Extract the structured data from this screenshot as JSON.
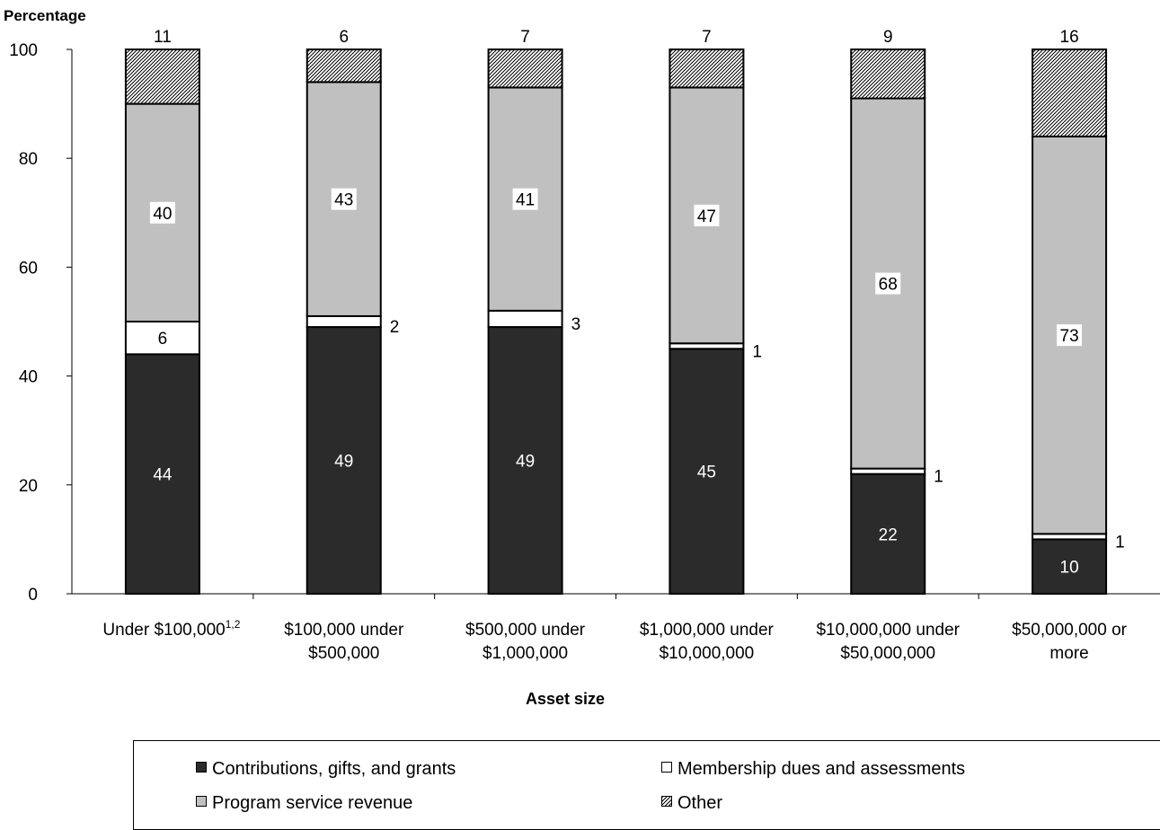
{
  "chart_data": {
    "type": "bar",
    "stacked": true,
    "ylabel": "Percentage",
    "xlabel": "Asset size",
    "ylim": [
      0,
      100
    ],
    "yticks": [
      0,
      20,
      40,
      60,
      80,
      100
    ],
    "categories": [
      [
        "Under $100,000",
        "1,2"
      ],
      [
        "$100,000 under",
        "$500,000"
      ],
      [
        "$500,000 under",
        "$1,000,000"
      ],
      [
        "$1,000,000 under",
        "$10,000,000"
      ],
      [
        "$10,000,000 under",
        "$50,000,000"
      ],
      [
        "$50,000,000 or",
        "more"
      ]
    ],
    "series": [
      {
        "name": "Contributions, gifts, and grants",
        "values": [
          44,
          49,
          49,
          45,
          22,
          10
        ],
        "color": "#2b2b2b"
      },
      {
        "name": "Membership dues and assessments",
        "values": [
          6,
          2,
          3,
          1,
          1,
          1
        ],
        "color": "#ffffff"
      },
      {
        "name": "Program service revenue",
        "values": [
          40,
          43,
          41,
          47,
          68,
          73
        ],
        "color": "#c0c0c0"
      },
      {
        "name": "Other",
        "values": [
          11,
          6,
          7,
          7,
          9,
          16
        ],
        "color": "hatch"
      }
    ],
    "legend_position": "bottom"
  }
}
